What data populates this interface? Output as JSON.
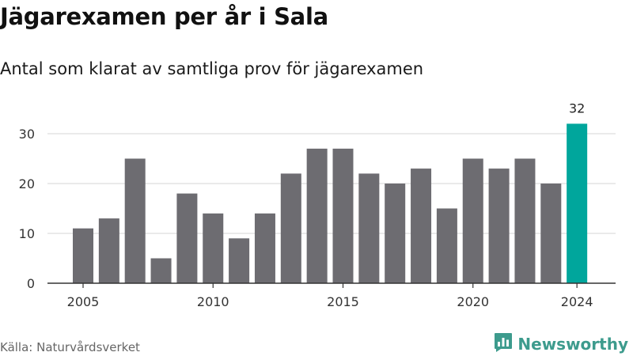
{
  "header": {
    "title": "Jägarexamen per år i Sala",
    "subtitle": "Antal som klarat av samtliga prov för jägarexamen"
  },
  "footer": {
    "source": "Källa: Naturvårdsverket",
    "brand": "Newsworthy",
    "brand_icon": "newsworthy-logo-icon"
  },
  "colors": {
    "bar": "#6d6c71",
    "highlight": "#00a69c",
    "grid": "#dddddd",
    "axis": "#333333",
    "brand": "#3d9b8d"
  },
  "chart_data": {
    "type": "bar",
    "title": "Jägarexamen per år i Sala",
    "subtitle": "Antal som klarat av samtliga prov för jägarexamen",
    "xlabel": "",
    "ylabel": "",
    "categories": [
      2005,
      2006,
      2007,
      2008,
      2009,
      2010,
      2011,
      2012,
      2013,
      2014,
      2015,
      2016,
      2017,
      2018,
      2019,
      2020,
      2021,
      2022,
      2023,
      2024
    ],
    "values": [
      11,
      13,
      25,
      5,
      18,
      14,
      9,
      14,
      22,
      27,
      27,
      22,
      20,
      23,
      15,
      25,
      23,
      25,
      20,
      32
    ],
    "highlight_category": 2024,
    "data_labels": [
      {
        "category": 2024,
        "text": "32"
      }
    ],
    "ylim": [
      0,
      32
    ],
    "yticks": [
      0,
      10,
      20,
      30
    ],
    "xticks": [
      2005,
      2010,
      2015,
      2020,
      2024
    ],
    "grid": true
  }
}
